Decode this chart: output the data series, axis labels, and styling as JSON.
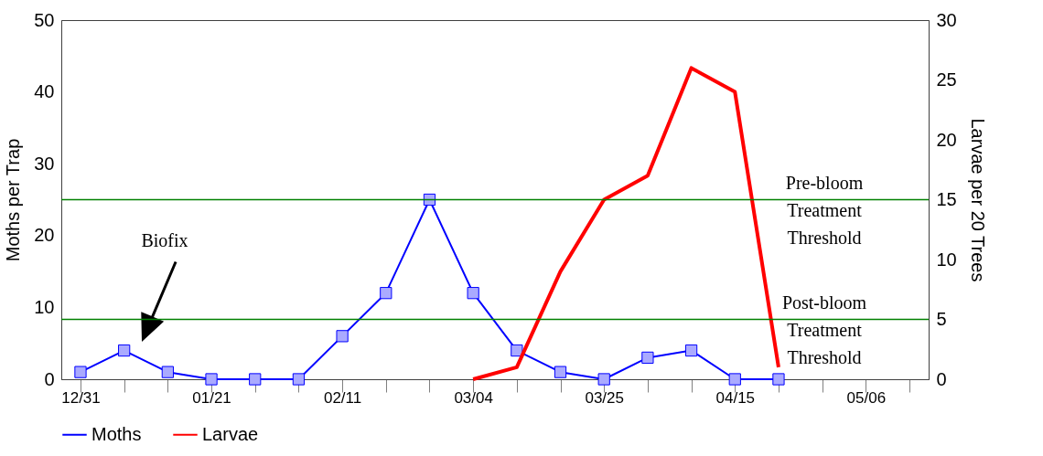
{
  "chart_data": {
    "type": "line",
    "ylabel": "Moths per Trap",
    "y2label": "Larvae per 20 Trees",
    "categories": [
      "12/31",
      null,
      null,
      "01/21",
      null,
      null,
      "02/11",
      null,
      null,
      "03/04",
      null,
      null,
      "03/25",
      null,
      null,
      "04/15",
      null,
      null,
      "05/06",
      null
    ],
    "ylim": [
      0,
      50
    ],
    "yticks": [
      0,
      10,
      20,
      30,
      40,
      50
    ],
    "y2lim": [
      0,
      30
    ],
    "y2ticks": [
      0,
      5,
      10,
      15,
      20,
      25,
      30
    ],
    "series": [
      {
        "name": "Moths",
        "color": "#0000ff",
        "marker": "square",
        "values": [
          1,
          4,
          1,
          0,
          0,
          0,
          6,
          12,
          25,
          12,
          4,
          1,
          0,
          3,
          4,
          0,
          0,
          null,
          null,
          null
        ]
      },
      {
        "name": "Larvae",
        "color": "#ff0000",
        "axis": "y2",
        "values": [
          null,
          null,
          null,
          null,
          null,
          null,
          null,
          null,
          null,
          0,
          1,
          9,
          15,
          17,
          26,
          24,
          1,
          null,
          null,
          null
        ]
      }
    ],
    "ref_lines": [
      {
        "axis": "y2",
        "value": 15,
        "label": "Pre-bloom Treatment Threshold",
        "color": "#008000"
      },
      {
        "axis": "y2",
        "value": 5,
        "label": "Post-bloom Treatment Threshold",
        "color": "#008000"
      }
    ],
    "annotations": [
      "Biofix"
    ],
    "legend": "bottom"
  }
}
